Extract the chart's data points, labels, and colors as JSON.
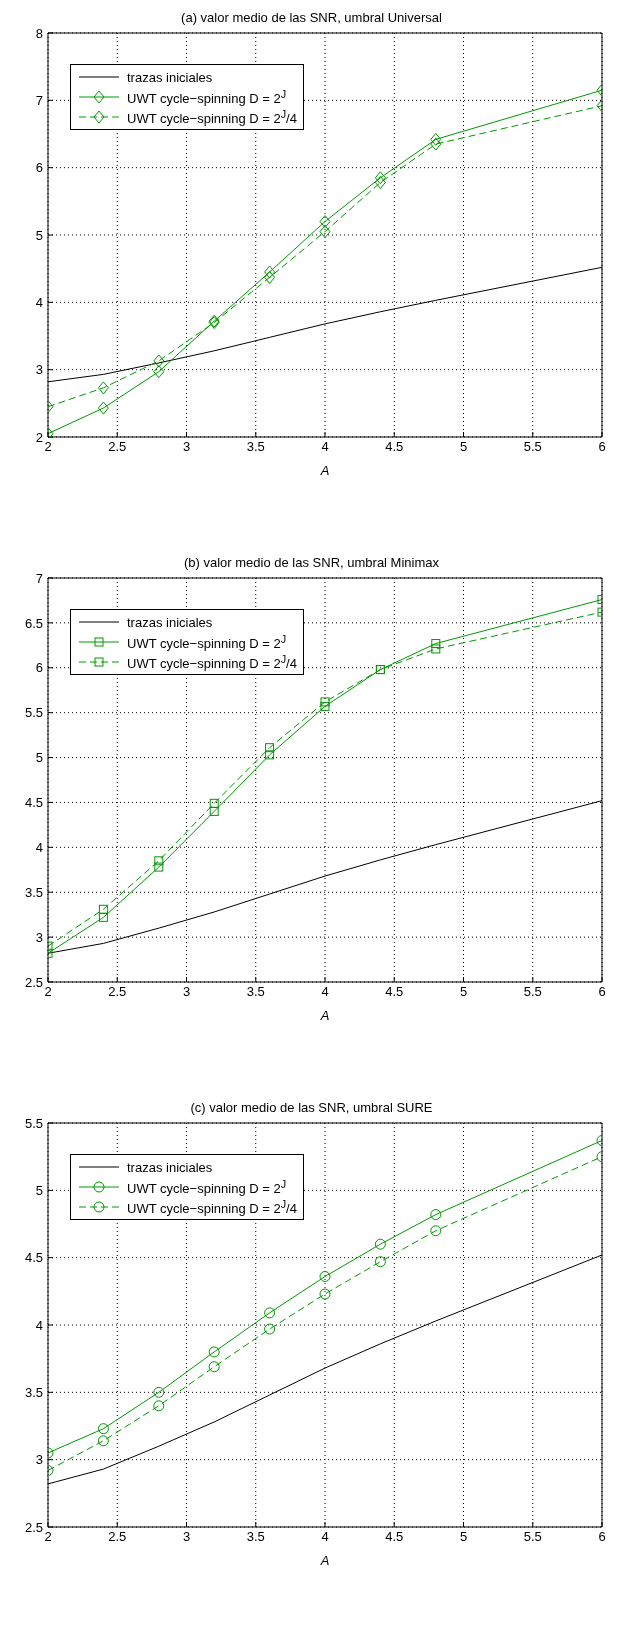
{
  "chart_data": [
    {
      "type": "line",
      "title": "(a) valor medio de las SNR, umbral Universal",
      "xlabel": "A",
      "x": [
        2,
        2.4,
        2.8,
        3.2,
        3.6,
        4,
        4.4,
        4.8,
        6
      ],
      "xlim": [
        2,
        6
      ],
      "xticks": [
        2,
        2.5,
        3,
        3.5,
        4,
        4.5,
        5,
        5.5,
        6
      ],
      "ylim": [
        2,
        8
      ],
      "yticks": [
        2,
        3,
        4,
        5,
        6,
        7,
        8
      ],
      "grid": true,
      "legend": "top left",
      "series": [
        {
          "name": "trazas iniciales",
          "color": "#000000",
          "marker": "none",
          "line_style": "solid",
          "values": [
            2.82,
            2.93,
            3.1,
            3.28,
            3.48,
            3.68,
            3.86,
            4.03,
            4.52
          ]
        },
        {
          "name": "UWT cycle−spinning  D = 2$^{J}$",
          "color": "#009900",
          "marker": "diamond",
          "line_style": "solid",
          "values": [
            2.05,
            2.43,
            2.97,
            3.72,
            4.45,
            5.2,
            5.85,
            6.42,
            7.15
          ]
        },
        {
          "name": "UWT cycle−spinning  D = 2$^{J}$/4",
          "color": "#009900",
          "marker": "diamond",
          "line_style": "dashed",
          "values": [
            2.45,
            2.73,
            3.13,
            3.7,
            4.37,
            5.05,
            5.78,
            6.35,
            6.92
          ]
        }
      ]
    },
    {
      "type": "line",
      "title": "(b) valor medio de las SNR, umbral Minimax",
      "xlabel": "A",
      "x": [
        2,
        2.4,
        2.8,
        3.2,
        3.6,
        4,
        4.4,
        4.8,
        6
      ],
      "xlim": [
        2,
        6
      ],
      "xticks": [
        2,
        2.5,
        3,
        3.5,
        4,
        4.5,
        5,
        5.5,
        6
      ],
      "ylim": [
        2.5,
        7
      ],
      "yticks": [
        2.5,
        3,
        3.5,
        4,
        4.5,
        5,
        5.5,
        6,
        6.5,
        7
      ],
      "grid": true,
      "legend": "top left",
      "series": [
        {
          "name": "trazas iniciales",
          "color": "#000000",
          "marker": "none",
          "line_style": "solid",
          "values": [
            2.82,
            2.93,
            3.1,
            3.28,
            3.48,
            3.68,
            3.86,
            4.03,
            4.52
          ]
        },
        {
          "name": "UWT cycle−spinning  D = 2$^{J}$",
          "color": "#009900",
          "marker": "square",
          "line_style": "solid",
          "values": [
            2.82,
            3.22,
            3.78,
            4.4,
            5.03,
            5.57,
            5.98,
            6.27,
            6.76
          ]
        },
        {
          "name": "UWT cycle−spinning  D = 2$^{J}$/4",
          "color": "#009900",
          "marker": "square",
          "line_style": "dashed",
          "values": [
            2.9,
            3.31,
            3.85,
            4.49,
            5.11,
            5.62,
            5.98,
            6.21,
            6.62
          ]
        }
      ]
    },
    {
      "type": "line",
      "title": "(c) valor medio de las SNR, umbral SURE",
      "xlabel": "A",
      "x": [
        2,
        2.4,
        2.8,
        3.2,
        3.6,
        4,
        4.4,
        4.8,
        6
      ],
      "xlim": [
        2,
        6
      ],
      "xticks": [
        2,
        2.5,
        3,
        3.5,
        4,
        4.5,
        5,
        5.5,
        6
      ],
      "ylim": [
        2.5,
        5.5
      ],
      "yticks": [
        2.5,
        3,
        3.5,
        4,
        4.5,
        5,
        5.5
      ],
      "grid": true,
      "legend": "top left",
      "series": [
        {
          "name": "trazas iniciales",
          "color": "#000000",
          "marker": "none",
          "line_style": "solid",
          "values": [
            2.82,
            2.93,
            3.1,
            3.28,
            3.48,
            3.68,
            3.86,
            4.03,
            4.52
          ]
        },
        {
          "name": "UWT cycle−spinning  D = 2$^{J}$",
          "color": "#009900",
          "marker": "circle",
          "line_style": "solid",
          "values": [
            3.05,
            3.23,
            3.5,
            3.8,
            4.09,
            4.36,
            4.6,
            4.82,
            5.37
          ]
        },
        {
          "name": "UWT cycle−spinning  D = 2$^{J}$/4",
          "color": "#009900",
          "marker": "circle",
          "line_style": "dashed",
          "values": [
            2.92,
            3.14,
            3.4,
            3.69,
            3.97,
            4.23,
            4.47,
            4.7,
            5.25
          ]
        }
      ]
    }
  ]
}
